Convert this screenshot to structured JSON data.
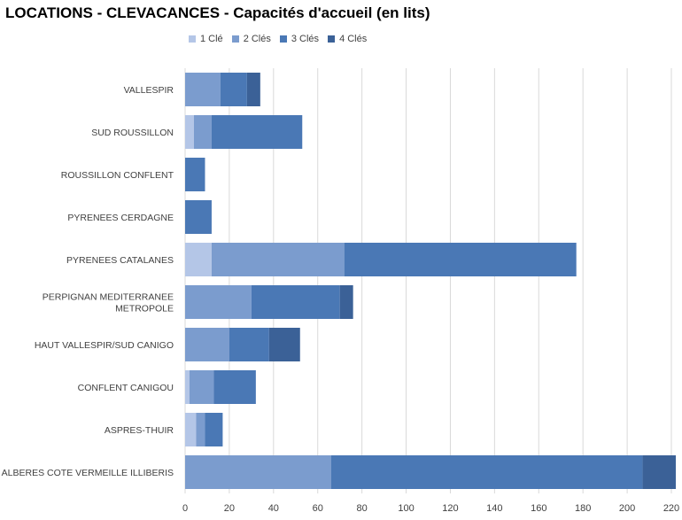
{
  "chart_data": {
    "type": "bar",
    "orientation": "horizontal",
    "stacked": true,
    "title": "LOCATIONS - CLEVACANCES - Capacités d'accueil (en lits)",
    "categories": [
      "VALLESPIR",
      "SUD ROUSSILLON",
      "ROUSSILLON CONFLENT",
      "PYRENEES CERDAGNE",
      "PYRENEES CATALANES",
      "PERPIGNAN MEDITERRANEE METROPOLE",
      "HAUT VALLESPIR/SUD CANIGO",
      "CONFLENT CANIGOU",
      "ASPRES-THUIR",
      "ALBERES COTE VERMEILLE ILLIBERIS"
    ],
    "category_lines": [
      [
        "VALLESPIR"
      ],
      [
        "SUD ROUSSILLON"
      ],
      [
        "ROUSSILLON CONFLENT"
      ],
      [
        "PYRENEES CERDAGNE"
      ],
      [
        "PYRENEES CATALANES"
      ],
      [
        "PERPIGNAN MEDITERRANEE",
        "METROPOLE"
      ],
      [
        "HAUT VALLESPIR/SUD CANIGO"
      ],
      [
        "CONFLENT CANIGOU"
      ],
      [
        "ASPRES-THUIR"
      ],
      [
        "ALBERES COTE VERMEILLE ILLIBERIS"
      ]
    ],
    "series": [
      {
        "name": "1 Clé",
        "color": "#b4c6e7",
        "values": [
          0,
          4,
          0,
          0,
          12,
          0,
          0,
          2,
          5,
          0
        ]
      },
      {
        "name": "2 Clés",
        "color": "#7b9cce",
        "values": [
          16,
          8,
          0,
          0,
          60,
          30,
          20,
          11,
          4,
          66
        ]
      },
      {
        "name": "3 Clés",
        "color": "#4a78b5",
        "values": [
          12,
          41,
          9,
          12,
          105,
          40,
          18,
          19,
          8,
          141
        ]
      },
      {
        "name": "4 Clés",
        "color": "#3b6197",
        "values": [
          6,
          0,
          0,
          0,
          0,
          6,
          14,
          0,
          0,
          15
        ]
      }
    ],
    "xlim": [
      0,
      220
    ],
    "xticks": [
      0,
      20,
      40,
      60,
      80,
      100,
      120,
      140,
      160,
      180,
      200,
      220
    ],
    "grid": true,
    "legend_position": "top"
  }
}
